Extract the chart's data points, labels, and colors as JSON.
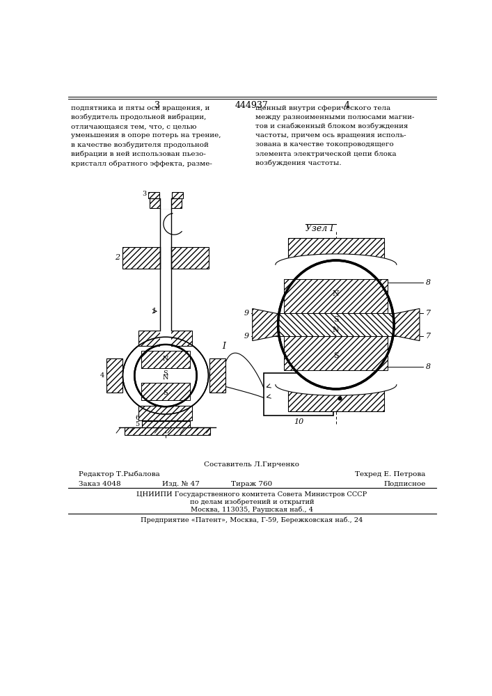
{
  "bg_color": "#ffffff",
  "page_number_left": "3",
  "page_number_center": "444937",
  "page_number_right": "4",
  "text_left": "подпятника и пяты оси вращения, и\nвозбудитель продольной вибрации,\nотличающаяся тем, что, с целью\nуменьшения в опоре потерь на трение,\nв качестве возбудителя продольной\nвибрации в ней использован пьезо-\nкристалл обратного эффекта, разме-",
  "text_right": "щенный внутри сферического тела\nмежду разноименными полюсами магни-\nтов и снабженный блоком возбуждения\nчастоты, причем ось вращения исполь-\nзована в качестве токопроводящего\nэлемента электрической цепи блока\nвозбуждения частоты.",
  "uzl_label": "Узел I",
  "footer_line1": "Составитель Л.Гирченко",
  "footer_line2_left": "Редактор Т.Рыбалова",
  "footer_line2_right": "Техред Е. Петрова",
  "footer_line3_left": "Заказ 4048",
  "footer_line3_m1": "Изд. № 47",
  "footer_line3_m2": "Тираж 760",
  "footer_line3_right": "Подписное",
  "footer_line4": "ЦНИИПИ Государственного комитета Совета Министров СССР",
  "footer_line5": "по делам изобретений и открытий",
  "footer_line6": "Москва, 113035, Раушская наб., 4",
  "footer_line7": "Предприятие «Патент», Москва, Г-59, Бережковская наб., 24",
  "line_color": "#000000"
}
